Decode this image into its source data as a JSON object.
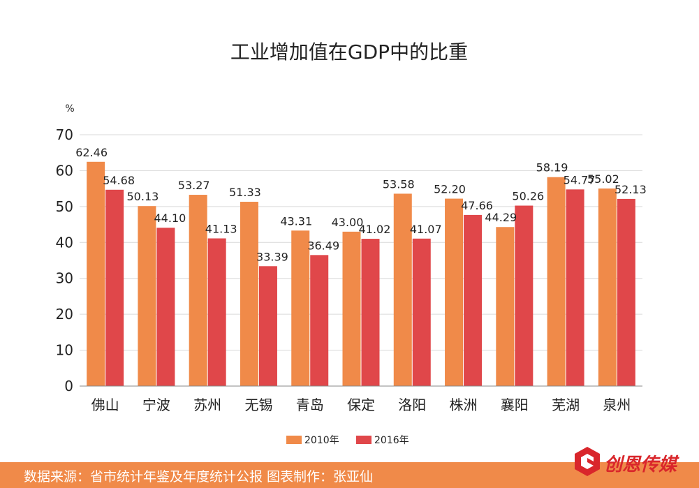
{
  "chart_data": {
    "type": "bar",
    "title": "工业增加值在GDP中的比重",
    "ylabel": "%",
    "ylim": [
      0,
      70
    ],
    "yticks": [
      0,
      10,
      20,
      30,
      40,
      50,
      60,
      70
    ],
    "grid": true,
    "legend_position": "bottom",
    "categories": [
      "佛山",
      "宁波",
      "苏州",
      "无锡",
      "青岛",
      "保定",
      "洛阳",
      "株洲",
      "襄阳",
      "芜湖",
      "泉州"
    ],
    "series": [
      {
        "name": "2010年",
        "color": "#f08a49",
        "values": [
          62.46,
          50.13,
          53.27,
          51.33,
          43.31,
          43.0,
          53.58,
          52.2,
          44.29,
          58.19,
          55.02
        ],
        "labels": [
          "62.46",
          "50.13",
          "53.27",
          "51.33",
          "43.31",
          "43.00",
          "53.58",
          "52.20",
          "44.29",
          "58.19",
          "55.02"
        ]
      },
      {
        "name": "2016年",
        "color": "#e0474a",
        "values": [
          54.68,
          44.1,
          41.13,
          33.39,
          36.49,
          41.02,
          41.07,
          47.66,
          50.26,
          54.77,
          52.13
        ],
        "labels": [
          "54.68",
          "44.10",
          "41.13",
          "33.39",
          "36.49",
          "41.02",
          "41.07",
          "47.66",
          "50.26",
          "54.77",
          "52.13"
        ]
      }
    ]
  },
  "footer": {
    "text": "数据来源：省市统计年鉴及年度统计公报  图表制作：张亚仙"
  },
  "logo": {
    "text": "创恩传媒",
    "color": "#d9262b"
  }
}
